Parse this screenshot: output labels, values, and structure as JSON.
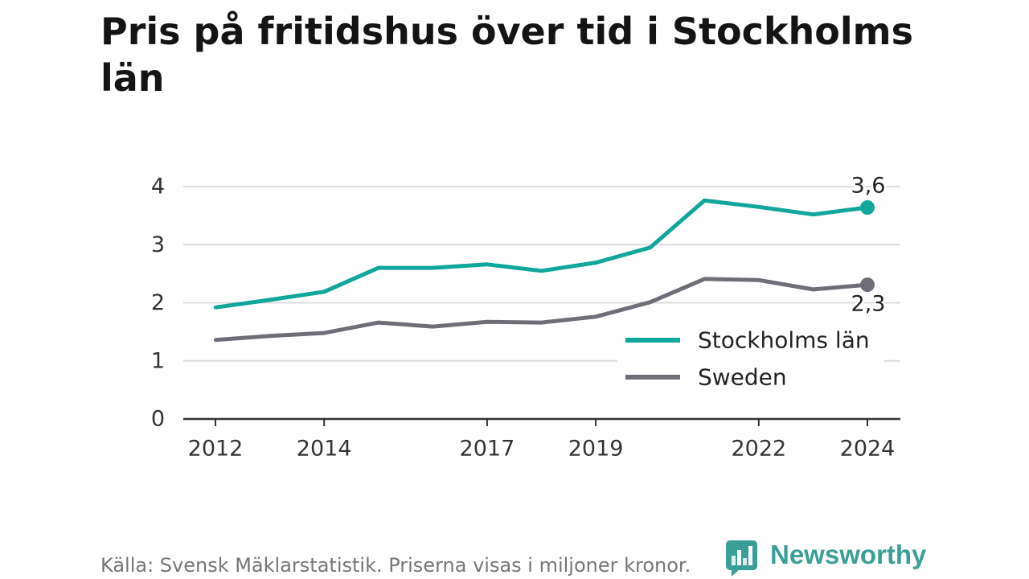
{
  "chart_data": {
    "type": "line",
    "title": "Pris på fritidshus över tid i Stockholms län",
    "x": [
      2012,
      2013,
      2014,
      2015,
      2016,
      2017,
      2018,
      2019,
      2020,
      2021,
      2022,
      2023,
      2024
    ],
    "x_ticks": [
      2012,
      2014,
      2017,
      2019,
      2022,
      2024
    ],
    "y_ticks": [
      0,
      1,
      2,
      3,
      4
    ],
    "ylim": [
      0,
      4
    ],
    "grid": true,
    "legend": "bottom-right",
    "series": [
      {
        "name": "Stockholms län",
        "color": "#0fa69b",
        "values": [
          1.92,
          2.05,
          2.19,
          2.6,
          2.6,
          2.66,
          2.55,
          2.69,
          2.95,
          3.76,
          3.65,
          3.52,
          3.64
        ],
        "end_label": "3,6"
      },
      {
        "name": "Sweden",
        "color": "#6f6e78",
        "values": [
          1.36,
          1.43,
          1.48,
          1.66,
          1.59,
          1.67,
          1.66,
          1.76,
          2.01,
          2.41,
          2.39,
          2.23,
          2.31
        ],
        "end_label": "2,3"
      }
    ]
  },
  "footer": {
    "source": "Källa: Svensk Mäklarstatistik. Priserna visas i miljoner kronor."
  },
  "brand": {
    "name": "Newsworthy",
    "icon": "newsworthy-logo-icon",
    "color": "#3aa097"
  }
}
